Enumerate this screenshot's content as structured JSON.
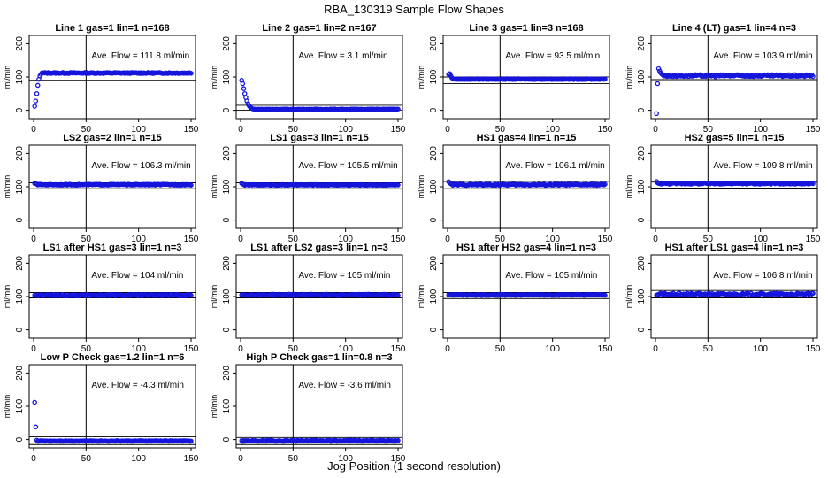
{
  "figure": {
    "title": "RBA_130319  Sample Flow Shapes",
    "xlabel": "Jog Position (1 second resolution)"
  },
  "chart_data": [
    {
      "type": "scatter",
      "title": "Line 1 gas=1 lin=1 n=168",
      "ylabel": "ml/min",
      "annotation": "Ave. Flow = 111.8  ml/min",
      "ave": 111.8,
      "shape": "rise",
      "start": [
        12,
        28,
        50,
        75,
        93,
        103,
        108,
        112
      ],
      "pre": 112,
      "noise": 1.6,
      "xlim": [
        0,
        150
      ],
      "ylim": [
        -25,
        225
      ],
      "xticks": [
        0,
        50,
        100,
        150
      ],
      "yticks": [
        0,
        100,
        200
      ],
      "vline": 50,
      "hlines": [
        90,
        112
      ]
    },
    {
      "type": "scatter",
      "title": "Line 2 gas=1 lin=2 n=167",
      "ylabel": "ml/min",
      "annotation": "Ave. Flow =  3.1  ml/min",
      "ave": 3.1,
      "shape": "decay",
      "start": [
        90,
        80,
        65,
        50,
        38,
        28,
        20,
        14,
        10,
        7,
        5,
        4
      ],
      "pre": 3.1,
      "noise": 0.8,
      "xlim": [
        0,
        150
      ],
      "ylim": [
        -25,
        225
      ],
      "xticks": [
        0,
        50,
        100,
        150
      ],
      "yticks": [
        0,
        100,
        200
      ],
      "vline": 50,
      "hlines": [
        15,
        0
      ]
    },
    {
      "type": "scatter",
      "title": "Line 3 gas=1 lin=3 n=168",
      "ylabel": "ml/min",
      "annotation": "Ave. Flow = 93.5  ml/min",
      "ave": 93.5,
      "shape": "bump",
      "start": [
        108,
        110,
        104,
        98,
        95
      ],
      "pre": 93.5,
      "noise": 1.2,
      "xlim": [
        0,
        150
      ],
      "ylim": [
        -25,
        225
      ],
      "xticks": [
        0,
        50,
        100,
        150
      ],
      "yticks": [
        0,
        100,
        200
      ],
      "vline": 50,
      "hlines": [
        80,
        100
      ]
    },
    {
      "type": "scatter",
      "title": "Line 4 (LT) gas=1 lin=4 n=3",
      "ylabel": "ml/min",
      "annotation": "Ave. Flow = 103.9  ml/min",
      "ave": 103.9,
      "shape": "dip",
      "start": [
        -10,
        80,
        125,
        118,
        112,
        109,
        107
      ],
      "pre": 104,
      "noise": 3.0,
      "xlim": [
        0,
        150
      ],
      "ylim": [
        -25,
        225
      ],
      "xticks": [
        0,
        50,
        100,
        150
      ],
      "yticks": [
        0,
        100,
        200
      ],
      "vline": 50,
      "hlines": [
        92,
        112
      ]
    },
    {
      "type": "scatter",
      "title": "LS2 gas=2 lin=1 n=15",
      "ylabel": "ml/min",
      "annotation": "Ave. Flow = 106.3  ml/min",
      "ave": 106.3,
      "shape": "flat",
      "start": [
        110,
        109,
        108
      ],
      "pre": 106.3,
      "noise": 1.5,
      "xlim": [
        0,
        150
      ],
      "ylim": [
        -25,
        225
      ],
      "xticks": [
        0,
        50,
        100,
        150
      ],
      "yticks": [
        0,
        100,
        200
      ],
      "vline": 50,
      "hlines": [
        94,
        112
      ]
    },
    {
      "type": "scatter",
      "title": "LS1 gas=3 lin=1 n=15",
      "ylabel": "ml/min",
      "annotation": "Ave. Flow = 105.5  ml/min",
      "ave": 105.5,
      "shape": "flat",
      "start": [
        110,
        108,
        107
      ],
      "pre": 105.5,
      "noise": 1.2,
      "xlim": [
        0,
        150
      ],
      "ylim": [
        -25,
        225
      ],
      "xticks": [
        0,
        50,
        100,
        150
      ],
      "yticks": [
        0,
        100,
        200
      ],
      "vline": 50,
      "hlines": [
        94,
        112
      ]
    },
    {
      "type": "scatter",
      "title": "HS1 gas=4 lin=1 n=15",
      "ylabel": "ml/min",
      "annotation": "Ave. Flow = 106.1  ml/min",
      "ave": 106.1,
      "shape": "flat",
      "start": [
        115,
        112,
        109
      ],
      "pre": 106.1,
      "noise": 2.0,
      "xlim": [
        0,
        150
      ],
      "ylim": [
        -25,
        225
      ],
      "xticks": [
        0,
        50,
        100,
        150
      ],
      "yticks": [
        0,
        100,
        200
      ],
      "vline": 50,
      "hlines": [
        94,
        116
      ]
    },
    {
      "type": "scatter",
      "title": "HS2 gas=5 lin=1 n=15",
      "ylabel": "ml/min",
      "annotation": "Ave. Flow = 109.8  ml/min",
      "ave": 109.8,
      "shape": "flat",
      "start": [
        116,
        112,
        110
      ],
      "pre": 109.8,
      "noise": 2.0,
      "xlim": [
        0,
        150
      ],
      "ylim": [
        -25,
        225
      ],
      "xticks": [
        0,
        50,
        100,
        150
      ],
      "yticks": [
        0,
        100,
        200
      ],
      "vline": 50,
      "hlines": [
        96,
        114
      ]
    },
    {
      "type": "scatter",
      "title": "LS1 after HS1 gas=3 lin=1 n=3",
      "ylabel": "ml/min",
      "annotation": "Ave. Flow =  104  ml/min",
      "ave": 104,
      "shape": "flat",
      "start": [
        104
      ],
      "pre": 104,
      "noise": 2.5,
      "xlim": [
        0,
        150
      ],
      "ylim": [
        -25,
        225
      ],
      "xticks": [
        0,
        50,
        100,
        150
      ],
      "yticks": [
        0,
        100,
        200
      ],
      "vline": 50,
      "hlines": [
        96,
        112
      ]
    },
    {
      "type": "scatter",
      "title": "LS1 after LS2 gas=3 lin=1 n=3",
      "ylabel": "ml/min",
      "annotation": "Ave. Flow =  105  ml/min",
      "ave": 105,
      "shape": "flat",
      "start": [
        105
      ],
      "pre": 105,
      "noise": 2.0,
      "xlim": [
        0,
        150
      ],
      "ylim": [
        -25,
        225
      ],
      "xticks": [
        0,
        50,
        100,
        150
      ],
      "yticks": [
        0,
        100,
        200
      ],
      "vline": 50,
      "hlines": [
        96,
        112
      ]
    },
    {
      "type": "scatter",
      "title": "HS1 after HS2 gas=4 lin=1 n=3",
      "ylabel": "ml/min",
      "annotation": "Ave. Flow =  105  ml/min",
      "ave": 105,
      "shape": "flat",
      "start": [
        105
      ],
      "pre": 105,
      "noise": 1.5,
      "xlim": [
        0,
        150
      ],
      "ylim": [
        -25,
        225
      ],
      "xticks": [
        0,
        50,
        100,
        150
      ],
      "yticks": [
        0,
        100,
        200
      ],
      "vline": 50,
      "hlines": [
        94,
        112
      ]
    },
    {
      "type": "scatter",
      "title": "HS1 after LS1 gas=4 lin=1 n=3",
      "ylabel": "ml/min",
      "annotation": "Ave. Flow = 106.8  ml/min",
      "ave": 106.8,
      "shape": "flat",
      "start": [
        104
      ],
      "pre": 106.8,
      "noise": 3.0,
      "xlim": [
        0,
        150
      ],
      "ylim": [
        -25,
        225
      ],
      "xticks": [
        0,
        50,
        100,
        150
      ],
      "yticks": [
        0,
        100,
        200
      ],
      "vline": 50,
      "hlines": [
        96,
        118
      ]
    },
    {
      "type": "scatter",
      "title": "Low P Check gas=1.2 lin=1 n=6",
      "ylabel": "ml/min",
      "annotation": "Ave. Flow = -4.3  ml/min",
      "ave": -4.3,
      "shape": "spike",
      "start": [
        112,
        38,
        -2,
        -5
      ],
      "pre": -4.3,
      "noise": 1.0,
      "xlim": [
        0,
        150
      ],
      "ylim": [
        -25,
        225
      ],
      "xticks": [
        0,
        50,
        100,
        150
      ],
      "yticks": [
        0,
        100,
        200
      ],
      "vline": 50,
      "hlines": [
        -15,
        8
      ]
    },
    {
      "type": "scatter",
      "title": "High P Check gas=1 lin=0.8 n=3",
      "ylabel": "ml/min",
      "annotation": "Ave. Flow = -3.6  ml/min",
      "ave": -3.6,
      "shape": "flat",
      "start": [
        -3
      ],
      "pre": -3.6,
      "noise": 1.8,
      "xlim": [
        0,
        150
      ],
      "ylim": [
        -25,
        225
      ],
      "xticks": [
        0,
        50,
        100,
        150
      ],
      "yticks": [
        0,
        100,
        200
      ],
      "vline": 50,
      "hlines": [
        -15,
        6
      ]
    }
  ]
}
